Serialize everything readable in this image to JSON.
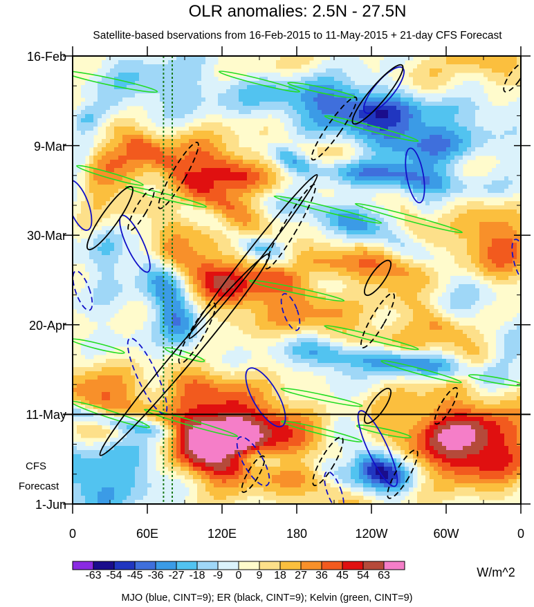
{
  "chart_data": {
    "type": "heatmap",
    "title": "OLR anomalies: 2.5N - 27.5N",
    "subtitle": "Satellite-based bservations from 16-Feb-2015 to 11-May-2015 + 21-day CFS Forecast",
    "y_tick_labels": [
      "16-Feb",
      "9-Mar",
      "30-Mar",
      "20-Apr",
      "11-May",
      "1-Jun"
    ],
    "y_tick_days": [
      0,
      21,
      42,
      63,
      84,
      105
    ],
    "forecast_start_day": 84,
    "forecast_label_line1": "CFS",
    "forecast_label_line2": "Forecast",
    "x_tick_labels": [
      "0",
      "60E",
      "120E",
      "180",
      "120W",
      "60W",
      "0"
    ],
    "x_tick_lons": [
      0,
      60,
      120,
      180,
      240,
      300,
      360
    ],
    "xlim": [
      0,
      360
    ],
    "ylim_days": [
      0,
      105
    ],
    "colorbar": {
      "labels": [
        "-63",
        "-54",
        "-45",
        "-36",
        "-27",
        "-18",
        "-9",
        "0",
        "9",
        "18",
        "27",
        "36",
        "45",
        "54",
        "63"
      ],
      "colors": [
        "#8a2be2",
        "#1a0d8c",
        "#2036c0",
        "#3f6fdc",
        "#3b9be6",
        "#52c3f0",
        "#9fd7f7",
        "#dbf2fb",
        "#fffbcc",
        "#fde08a",
        "#fbbf3e",
        "#f8902a",
        "#f25a1e",
        "#e01010",
        "#b54a3a",
        "#f57ec8"
      ],
      "units": "W/m^2"
    },
    "note": "MJO (blue, CINT=9); ER (black, CINT=9); Kelvin (green, CINT=9)",
    "contour_colors": {
      "mjo": "#1010c8",
      "er": "#000000",
      "kelvin": "#22dd22",
      "marker": "#1a7a1a"
    },
    "marker_lons": [
      73,
      80
    ]
  }
}
